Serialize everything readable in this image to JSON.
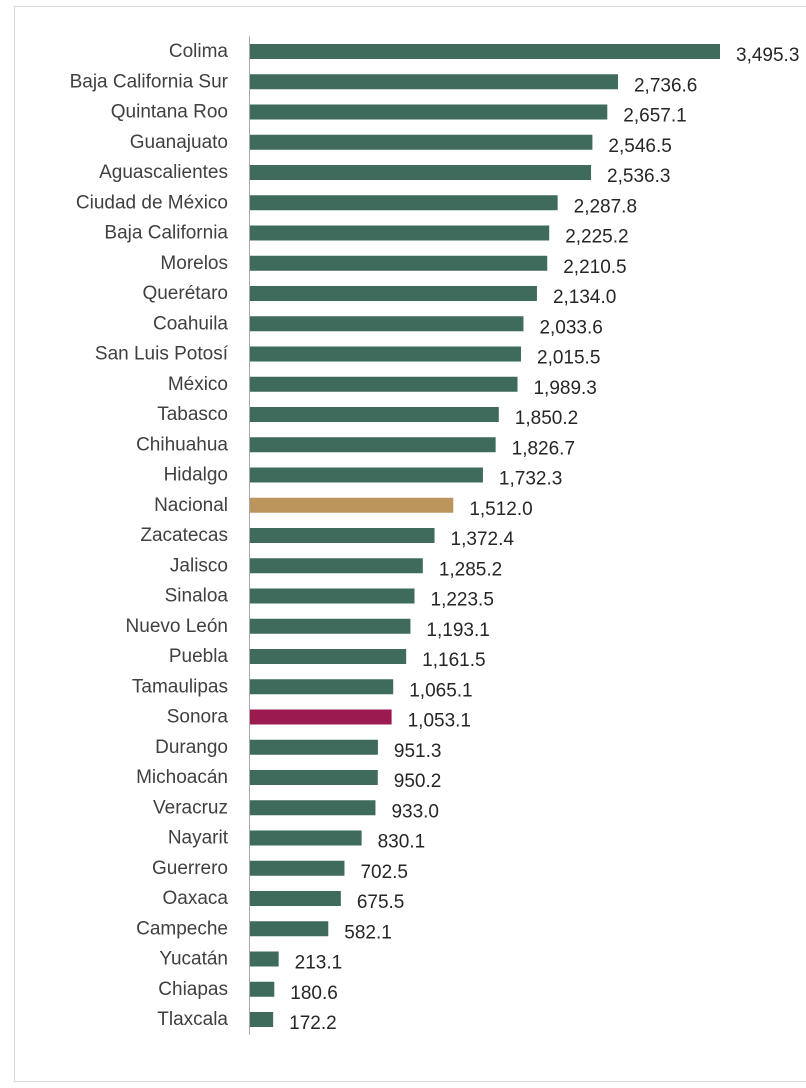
{
  "chart_data": {
    "type": "bar",
    "orientation": "horizontal",
    "title": "",
    "xlabel": "",
    "ylabel": "",
    "grid": false,
    "legend": "none",
    "colors": {
      "default": "#3e6b5c",
      "nacional": "#bc955c",
      "sonora": "#9b1a4f",
      "axis": "#a6a6a6",
      "text": "#404040",
      "value_text": "#262626",
      "frame": "#d9d9d9"
    },
    "xlim": [
      0,
      3495.3
    ],
    "categories": [
      "Colima",
      "Baja California Sur",
      "Quintana Roo",
      "Guanajuato",
      "Aguascalientes",
      "Ciudad de México",
      "Baja California",
      "Morelos",
      "Querétaro",
      "Coahuila",
      "San Luis Potosí",
      "México",
      "Tabasco",
      "Chihuahua",
      "Hidalgo",
      "Nacional",
      "Zacatecas",
      "Jalisco",
      "Sinaloa",
      "Nuevo León",
      "Puebla",
      "Tamaulipas",
      "Sonora",
      "Durango",
      "Michoacán",
      "Veracruz",
      "Nayarit",
      "Guerrero",
      "Oaxaca",
      "Campeche",
      "Yucatán",
      "Chiapas",
      "Tlaxcala"
    ],
    "values": [
      3495.3,
      2736.6,
      2657.1,
      2546.5,
      2536.3,
      2287.8,
      2225.2,
      2210.5,
      2134.0,
      2033.6,
      2015.5,
      1989.3,
      1850.2,
      1826.7,
      1732.3,
      1512.0,
      1372.4,
      1285.2,
      1223.5,
      1193.1,
      1161.5,
      1065.1,
      1053.1,
      951.3,
      950.2,
      933.0,
      830.1,
      702.5,
      675.5,
      582.1,
      213.1,
      180.6,
      172.2
    ],
    "value_labels": [
      "3,495.3",
      "2,736.6",
      "2,657.1",
      "2,546.5",
      "2,536.3",
      "2,287.8",
      "2,225.2",
      "2,210.5",
      "2,134.0",
      "2,033.6",
      "2,015.5",
      "1,989.3",
      "1,850.2",
      "1,826.7",
      "1,732.3",
      "1,512.0",
      "1,372.4",
      "1,285.2",
      "1,223.5",
      "1,193.1",
      "1,161.5",
      "1,065.1",
      "1,053.1",
      "951.3",
      "950.2",
      "933.0",
      "830.1",
      "702.5",
      "675.5",
      "582.1",
      "213.1",
      "180.6",
      "172.2"
    ],
    "highlight": {
      "Nacional": "nacional",
      "Sonora": "sonora"
    }
  }
}
